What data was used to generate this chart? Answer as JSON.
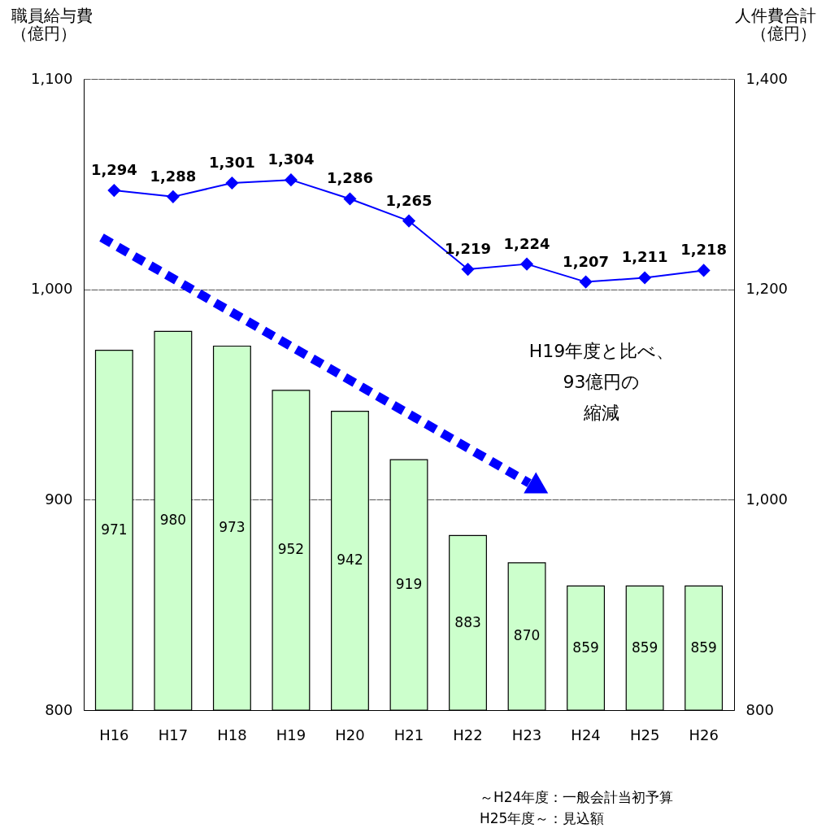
{
  "chart_data": {
    "type": "bar",
    "categories": [
      "H16",
      "H17",
      "H18",
      "H19",
      "H20",
      "H21",
      "H22",
      "H23",
      "H24",
      "H25",
      "H26"
    ],
    "series": [
      {
        "color": "#ccffcc",
        "values": [
          971,
          980,
          973,
          952,
          942,
          919,
          883,
          870,
          859,
          859,
          859
        ]
      },
      {
        "type": "line",
        "axis": "y2",
        "color": "#0000ff",
        "values": [
          1294,
          1288,
          1301,
          1304,
          1286,
          1265,
          1219,
          1224,
          1207,
          1211,
          1218
        ],
        "value_labels": [
          "1,294",
          "1,288",
          "1,301",
          "1,304",
          "1,286",
          "1,265",
          "1,219",
          "1,224",
          "1,207",
          "1,211",
          "1,218"
        ]
      }
    ],
    "ylabel": "職員給与費（億円）",
    "y2label": "人件費合計（億円）",
    "ylim": [
      800,
      1100
    ],
    "yticks": [
      800,
      900,
      {
        "value": 1000,
        "label": "1,000"
      },
      {
        "value": 1100,
        "label": "1,100"
      }
    ],
    "y2lim": [
      800,
      1400
    ],
    "y2ticks": [
      800,
      {
        "value": 1000,
        "label": "1,000"
      },
      {
        "value": 1200,
        "label": "1,200"
      },
      {
        "value": 1400,
        "label": "1,400"
      }
    ],
    "grid": "y",
    "marker": "diamond",
    "data_labels": true,
    "annotations": [
      "H19年度と比べ、",
      "93億円の",
      "縮減",
      "～H24年度：一般会計当初予算",
      "H25年度～：見込額"
    ]
  }
}
